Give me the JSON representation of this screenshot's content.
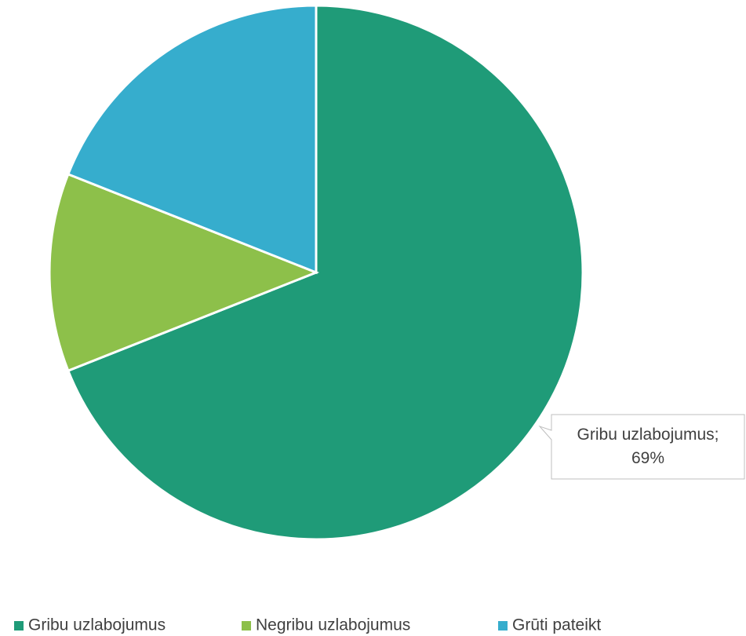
{
  "chart_data": {
    "type": "pie",
    "categories": [
      "Gribu uzlabojumus",
      "Negribu uzlabojumus",
      "Grūti pateikt"
    ],
    "values": [
      69,
      12,
      19
    ],
    "value_labels": [
      "Gribu uzlabojumus; 69%",
      null,
      null
    ],
    "colors": [
      "#1f9b78",
      "#8dc04a",
      "#36adcd"
    ],
    "legend": "bottom"
  }
}
